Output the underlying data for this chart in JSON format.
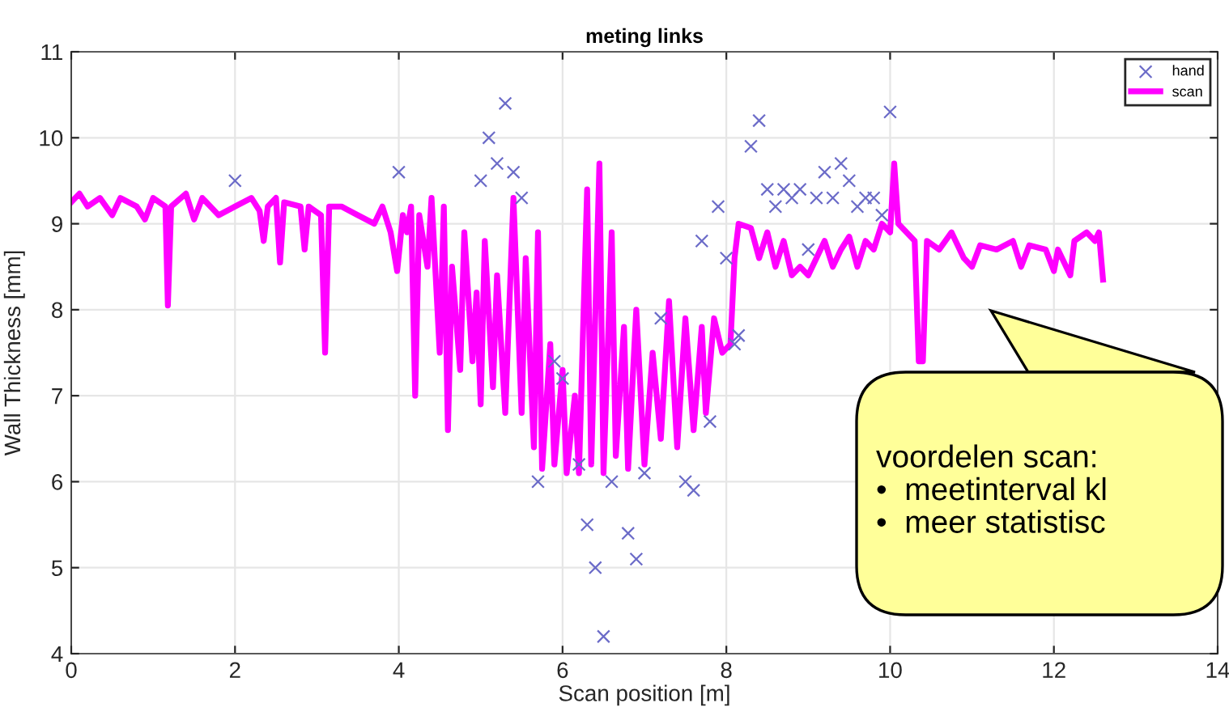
{
  "chart_data": {
    "type": "line",
    "title": "meting links",
    "xlabel": "Scan position [m]",
    "ylabel": "Wall Thickness [mm]",
    "xlim": [
      0,
      14
    ],
    "xticks": [
      0,
      2,
      4,
      6,
      8,
      10,
      12,
      14
    ],
    "ylim": [
      4,
      11
    ],
    "yticks": [
      4,
      5,
      6,
      7,
      8,
      9,
      10,
      11
    ],
    "grid": true,
    "legend": "top right",
    "annotations": [
      "voordelen scan:\n•  meetinterval kl\n•  meer statistisc"
    ],
    "series": [
      {
        "name": "hand",
        "type": "scatter",
        "marker": "cross",
        "color": "#6b6bc8",
        "x": [
          2.0,
          4.0,
          5.0,
          5.1,
          5.2,
          5.3,
          5.4,
          5.5,
          5.7,
          5.9,
          6.0,
          6.2,
          6.3,
          6.4,
          6.5,
          6.6,
          6.8,
          6.9,
          7.0,
          7.2,
          7.5,
          7.6,
          7.7,
          7.8,
          7.9,
          8.0,
          8.1,
          8.15,
          8.3,
          8.4,
          8.5,
          8.6,
          8.7,
          8.8,
          8.9,
          9.0,
          9.1,
          9.2,
          9.3,
          9.4,
          9.5,
          9.6,
          9.7,
          9.8,
          9.9,
          10.0
        ],
        "values": [
          9.5,
          9.6,
          9.5,
          10.0,
          9.7,
          10.4,
          9.6,
          9.3,
          6.0,
          7.4,
          7.2,
          6.2,
          5.5,
          5.0,
          4.2,
          6.0,
          5.4,
          5.1,
          6.1,
          7.9,
          6.0,
          5.9,
          8.8,
          6.7,
          9.2,
          8.6,
          7.6,
          7.7,
          9.9,
          10.2,
          9.4,
          9.2,
          9.4,
          9.3,
          9.4,
          8.7,
          9.3,
          9.6,
          9.3,
          9.7,
          9.5,
          9.2,
          9.3,
          9.3,
          9.1,
          10.3
        ]
      },
      {
        "name": "scan",
        "line_style": "solid",
        "color": "#ff00ff",
        "x": [
          0,
          0.1,
          0.2,
          0.35,
          0.5,
          0.6,
          0.8,
          0.9,
          1.0,
          1.15,
          1.18,
          1.22,
          1.4,
          1.5,
          1.6,
          1.8,
          2.0,
          2.2,
          2.3,
          2.35,
          2.4,
          2.5,
          2.55,
          2.6,
          2.8,
          2.85,
          2.9,
          3.05,
          3.1,
          3.15,
          3.3,
          3.5,
          3.7,
          3.8,
          3.9,
          3.98,
          4.05,
          4.1,
          4.15,
          4.2,
          4.25,
          4.35,
          4.4,
          4.5,
          4.55,
          4.6,
          4.65,
          4.75,
          4.8,
          4.9,
          4.95,
          5.0,
          5.05,
          5.15,
          5.2,
          5.3,
          5.4,
          5.5,
          5.55,
          5.65,
          5.7,
          5.75,
          5.85,
          5.9,
          6.0,
          6.05,
          6.15,
          6.2,
          6.3,
          6.35,
          6.45,
          6.5,
          6.6,
          6.65,
          6.75,
          6.8,
          6.9,
          7.0,
          7.1,
          7.2,
          7.3,
          7.4,
          7.5,
          7.6,
          7.7,
          7.75,
          7.85,
          7.95,
          8.05,
          8.1,
          8.15,
          8.3,
          8.4,
          8.5,
          8.6,
          8.7,
          8.8,
          8.9,
          9.0,
          9.1,
          9.2,
          9.3,
          9.4,
          9.5,
          9.6,
          9.7,
          9.8,
          9.9,
          10.0,
          10.05,
          10.1,
          10.3,
          10.35,
          10.4,
          10.45,
          10.6,
          10.75,
          10.9,
          11.0,
          11.1,
          11.3,
          11.5,
          11.6,
          11.7,
          11.9,
          12.0,
          12.05,
          12.2,
          12.25,
          12.4,
          12.5,
          12.55,
          12.6
        ],
        "values": [
          9.25,
          9.35,
          9.2,
          9.3,
          9.1,
          9.3,
          9.2,
          9.05,
          9.3,
          9.2,
          8.05,
          9.2,
          9.35,
          9.05,
          9.3,
          9.1,
          9.2,
          9.3,
          9.15,
          8.8,
          9.2,
          9.3,
          8.55,
          9.25,
          9.2,
          8.7,
          9.2,
          9.1,
          7.5,
          9.2,
          9.2,
          9.1,
          9.0,
          9.2,
          8.9,
          8.45,
          9.1,
          8.9,
          9.2,
          7.0,
          9.1,
          8.5,
          9.3,
          7.5,
          9.2,
          6.6,
          8.5,
          7.3,
          8.9,
          7.4,
          8.2,
          6.9,
          8.8,
          7.1,
          8.4,
          6.8,
          9.3,
          6.8,
          8.6,
          6.4,
          8.9,
          6.15,
          7.6,
          6.2,
          7.3,
          6.1,
          7.0,
          6.1,
          9.4,
          6.2,
          9.7,
          6.1,
          8.9,
          6.3,
          7.8,
          6.15,
          8.0,
          6.2,
          7.5,
          6.5,
          8.1,
          6.4,
          7.9,
          6.6,
          7.8,
          6.8,
          7.9,
          7.5,
          7.6,
          8.6,
          9.0,
          8.95,
          8.6,
          8.9,
          8.5,
          8.8,
          8.4,
          8.5,
          8.4,
          8.6,
          8.8,
          8.5,
          8.7,
          8.85,
          8.5,
          8.8,
          8.7,
          9.0,
          8.9,
          9.7,
          9.0,
          8.8,
          7.4,
          7.4,
          8.8,
          8.7,
          8.9,
          8.6,
          8.5,
          8.75,
          8.7,
          8.8,
          8.5,
          8.75,
          8.7,
          8.45,
          8.7,
          8.4,
          8.8,
          8.9,
          8.8,
          8.9,
          8.35
        ]
      }
    ]
  }
}
